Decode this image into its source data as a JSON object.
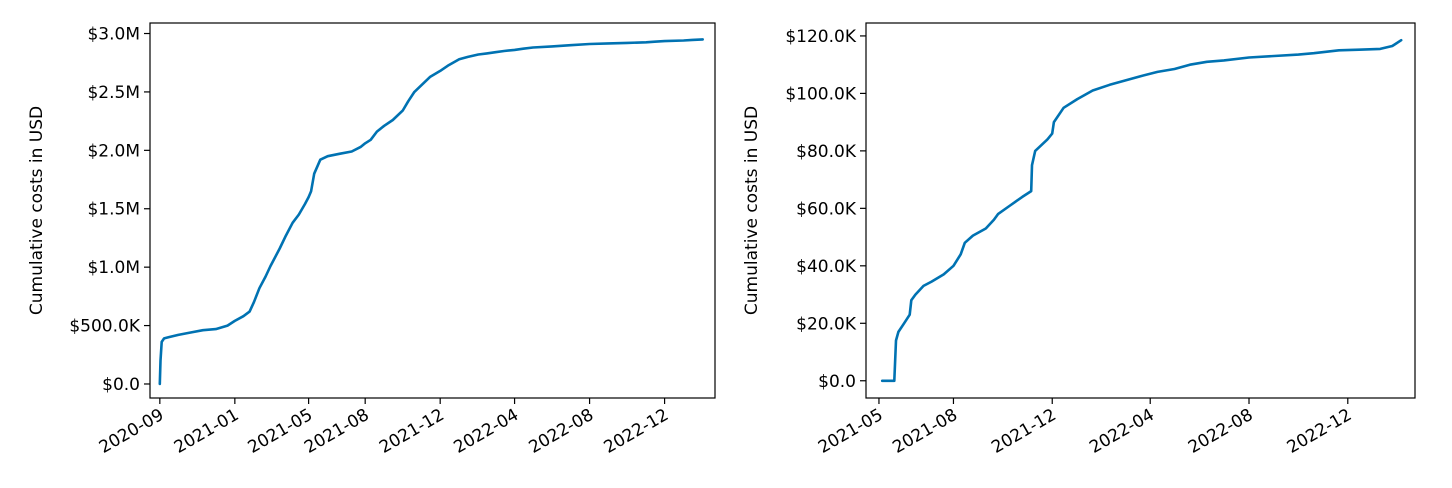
{
  "chart_data": [
    {
      "type": "line",
      "title": "",
      "xlabel": "",
      "ylabel": "Cumulative costs in USD",
      "x_axis_type": "date",
      "xlim": [
        "2020-08-16",
        "2023-02-21"
      ],
      "ylim": [
        -120000,
        3090000
      ],
      "grid": false,
      "line_color": "#0072B2",
      "xticks": [
        "2020-09",
        "2021-01",
        "2021-05",
        "2021-08",
        "2021-12",
        "2022-04",
        "2022-08",
        "2022-12"
      ],
      "xtick_dates": [
        "2020-09-01",
        "2021-01-01",
        "2021-05-01",
        "2021-08-01",
        "2021-12-01",
        "2022-04-01",
        "2022-08-01",
        "2022-12-01"
      ],
      "yticks": [
        0,
        500000,
        1000000,
        1500000,
        2000000,
        2500000,
        3000000
      ],
      "ytick_labels": [
        "$0.0",
        "$500.0K",
        "$1.0M",
        "$1.5M",
        "$2.0M",
        "$2.5M",
        "$3.0M"
      ],
      "series": [
        {
          "x": [
            "2020-09-01",
            "2020-09-02",
            "2020-09-04",
            "2020-09-08",
            "2020-09-15",
            "2020-10-01",
            "2020-10-20",
            "2020-11-10",
            "2020-12-01",
            "2020-12-20",
            "2021-01-01",
            "2021-01-15",
            "2021-01-25",
            "2021-02-01",
            "2021-02-10",
            "2021-02-20",
            "2021-02-28",
            "2021-03-05",
            "2021-03-15",
            "2021-03-25",
            "2021-04-05",
            "2021-04-15",
            "2021-04-25",
            "2021-05-01",
            "2021-05-05",
            "2021-05-10",
            "2021-05-20",
            "2021-06-01",
            "2021-06-20",
            "2021-07-10",
            "2021-07-25",
            "2021-08-01",
            "2021-08-10",
            "2021-08-20",
            "2021-09-01",
            "2021-09-15",
            "2021-10-01",
            "2021-10-10",
            "2021-10-20",
            "2021-11-01",
            "2021-11-15",
            "2021-12-01",
            "2021-12-15",
            "2022-01-01",
            "2022-01-15",
            "2022-02-01",
            "2022-02-15",
            "2022-03-01",
            "2022-03-15",
            "2022-04-01",
            "2022-04-15",
            "2022-05-01",
            "2022-06-01",
            "2022-07-01",
            "2022-08-01",
            "2022-09-01",
            "2022-10-01",
            "2022-11-01",
            "2022-11-15",
            "2022-12-01",
            "2023-01-01",
            "2023-01-15",
            "2023-02-01"
          ],
          "y": [
            0,
            200000,
            360000,
            390000,
            400000,
            420000,
            440000,
            460000,
            470000,
            500000,
            540000,
            580000,
            620000,
            700000,
            820000,
            920000,
            1010000,
            1060000,
            1160000,
            1270000,
            1380000,
            1450000,
            1540000,
            1600000,
            1650000,
            1800000,
            1920000,
            1950000,
            1970000,
            1990000,
            2030000,
            2060000,
            2090000,
            2160000,
            2210000,
            2260000,
            2340000,
            2420000,
            2500000,
            2560000,
            2630000,
            2680000,
            2730000,
            2780000,
            2800000,
            2820000,
            2830000,
            2840000,
            2850000,
            2860000,
            2870000,
            2880000,
            2890000,
            2900000,
            2910000,
            2915000,
            2920000,
            2925000,
            2930000,
            2935000,
            2940000,
            2945000,
            2950000
          ]
        }
      ]
    },
    {
      "type": "line",
      "title": "",
      "xlabel": "",
      "ylabel": "Cumulative costs in USD",
      "x_axis_type": "date",
      "xlim": [
        "2021-04-15",
        "2023-02-22"
      ],
      "ylim": [
        -6000,
        124500
      ],
      "grid": false,
      "line_color": "#0072B2",
      "xticks": [
        "2021-05",
        "2021-08",
        "2021-12",
        "2022-04",
        "2022-08",
        "2022-12"
      ],
      "xtick_dates": [
        "2021-05-01",
        "2021-08-01",
        "2021-12-01",
        "2022-04-01",
        "2022-08-01",
        "2022-12-01"
      ],
      "yticks": [
        0,
        20000,
        40000,
        60000,
        80000,
        100000,
        120000
      ],
      "ytick_labels": [
        "$0.0",
        "$20.0K",
        "$40.0K",
        "$60.0K",
        "$80.0K",
        "$100.0K",
        "$120.0K"
      ],
      "series": [
        {
          "x": [
            "2021-05-05",
            "2021-05-20",
            "2021-05-22",
            "2021-05-25",
            "2021-06-01",
            "2021-06-08",
            "2021-06-10",
            "2021-06-15",
            "2021-06-25",
            "2021-07-05",
            "2021-07-20",
            "2021-08-01",
            "2021-08-10",
            "2021-08-15",
            "2021-08-25",
            "2021-09-10",
            "2021-09-20",
            "2021-09-25",
            "2021-10-10",
            "2021-10-25",
            "2021-11-05",
            "2021-11-06",
            "2021-11-10",
            "2021-11-25",
            "2021-12-01",
            "2021-12-03",
            "2021-12-15",
            "2022-01-01",
            "2022-01-20",
            "2022-02-10",
            "2022-03-01",
            "2022-03-20",
            "2022-04-10",
            "2022-05-01",
            "2022-05-20",
            "2022-06-10",
            "2022-07-01",
            "2022-08-01",
            "2022-09-01",
            "2022-10-01",
            "2022-10-20",
            "2022-11-20",
            "2022-12-15",
            "2023-01-10",
            "2023-01-25",
            "2023-02-05"
          ],
          "y": [
            0,
            0,
            14000,
            17000,
            20000,
            23000,
            28000,
            30000,
            33000,
            34500,
            37000,
            40000,
            44000,
            48000,
            50500,
            53000,
            56000,
            58000,
            61000,
            64000,
            66000,
            75000,
            80000,
            84000,
            86000,
            90000,
            95000,
            98000,
            101000,
            103000,
            104500,
            106000,
            107500,
            108500,
            110000,
            111000,
            111500,
            112500,
            113000,
            113500,
            114000,
            115000,
            115200,
            115500,
            116500,
            118500
          ]
        }
      ]
    }
  ]
}
